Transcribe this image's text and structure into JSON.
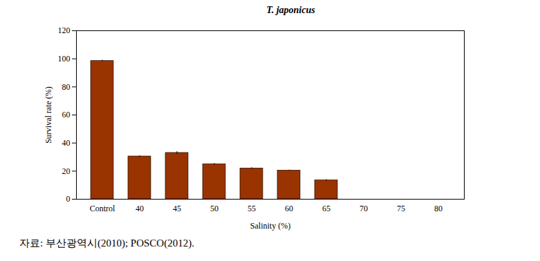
{
  "chart_data": {
    "type": "bar",
    "title": "T. japonicus",
    "x_label": "Salinity (%)",
    "y_label": "Survival rate (%)",
    "categories": [
      "Control",
      "40",
      "45",
      "50",
      "55",
      "60",
      "65",
      "70",
      "75",
      "80"
    ],
    "values": [
      98.5,
      30.5,
      33,
      25,
      22,
      20.5,
      13.5,
      0,
      0,
      0
    ],
    "errors": [
      0.5,
      0.5,
      1,
      0.5,
      0.5,
      0.3,
      0.5,
      0,
      0,
      0
    ],
    "color": "#993300",
    "ylim": [
      0,
      120
    ],
    "yticks": [
      0,
      20,
      40,
      60,
      80,
      100,
      120
    ],
    "grid": false,
    "caption": "자료: 부산광역시(2010); POSCO(2012)."
  }
}
